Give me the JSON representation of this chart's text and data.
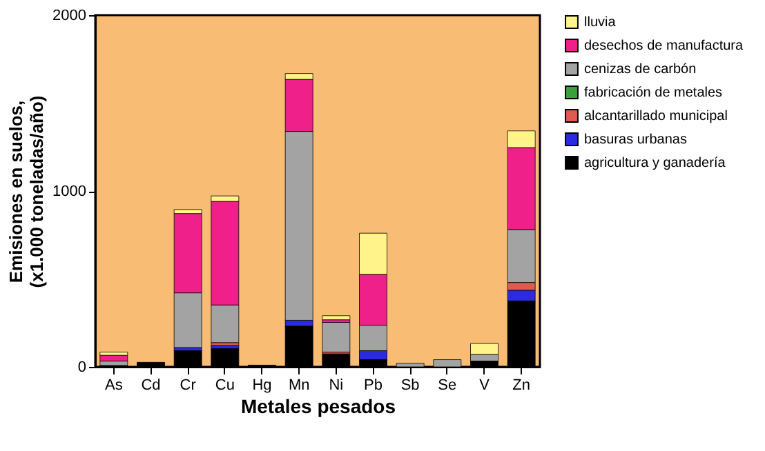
{
  "chart_data": {
    "type": "bar",
    "stacked": true,
    "xlabel": "Metales pesados",
    "ylabel": "Emisiones en suelos,\n(x1.000 toneladas/año)",
    "categories": [
      "As",
      "Cd",
      "Cr",
      "Cu",
      "Hg",
      "Mn",
      "Ni",
      "Pb",
      "Sb",
      "Se",
      "V",
      "Zn"
    ],
    "series": [
      {
        "name": "agricultura y ganadería",
        "color": "#000000",
        "values": [
          8,
          26,
          92,
          105,
          10,
          232,
          74,
          41,
          null,
          null,
          33,
          375
        ]
      },
      {
        "name": "basuras urbanas",
        "color": "#2a2ae0",
        "values": [
          null,
          null,
          18,
          17,
          null,
          33,
          null,
          51,
          null,
          null,
          null,
          61
        ]
      },
      {
        "name": "alcantarillado municipal",
        "color": "#e05a50",
        "values": [
          null,
          null,
          null,
          16,
          null,
          null,
          10,
          null,
          null,
          null,
          null,
          44
        ]
      },
      {
        "name": "fabricación de metales",
        "color": "#3aa03a",
        "values": [
          null,
          null,
          null,
          null,
          null,
          null,
          null,
          null,
          null,
          null,
          null,
          null
        ]
      },
      {
        "name": "cenizas de carbón",
        "color": "#a3a3a3",
        "values": [
          25,
          null,
          311,
          214,
          null,
          1074,
          169,
          145,
          20,
          41,
          38,
          301
        ]
      },
      {
        "name": "desechos de manufactura",
        "color": "#f0208a",
        "values": [
          33,
          null,
          451,
          589,
          null,
          296,
          15,
          289,
          null,
          null,
          null,
          466
        ]
      },
      {
        "name": "lluvia",
        "color": "#fff38a",
        "values": [
          18,
          null,
          23,
          31,
          null,
          33,
          23,
          234,
          null,
          null,
          62,
          95
        ]
      }
    ],
    "ylim": [
      0,
      2000
    ],
    "yticks": [
      0,
      1000,
      2000
    ],
    "grid": false,
    "legend": "right"
  }
}
